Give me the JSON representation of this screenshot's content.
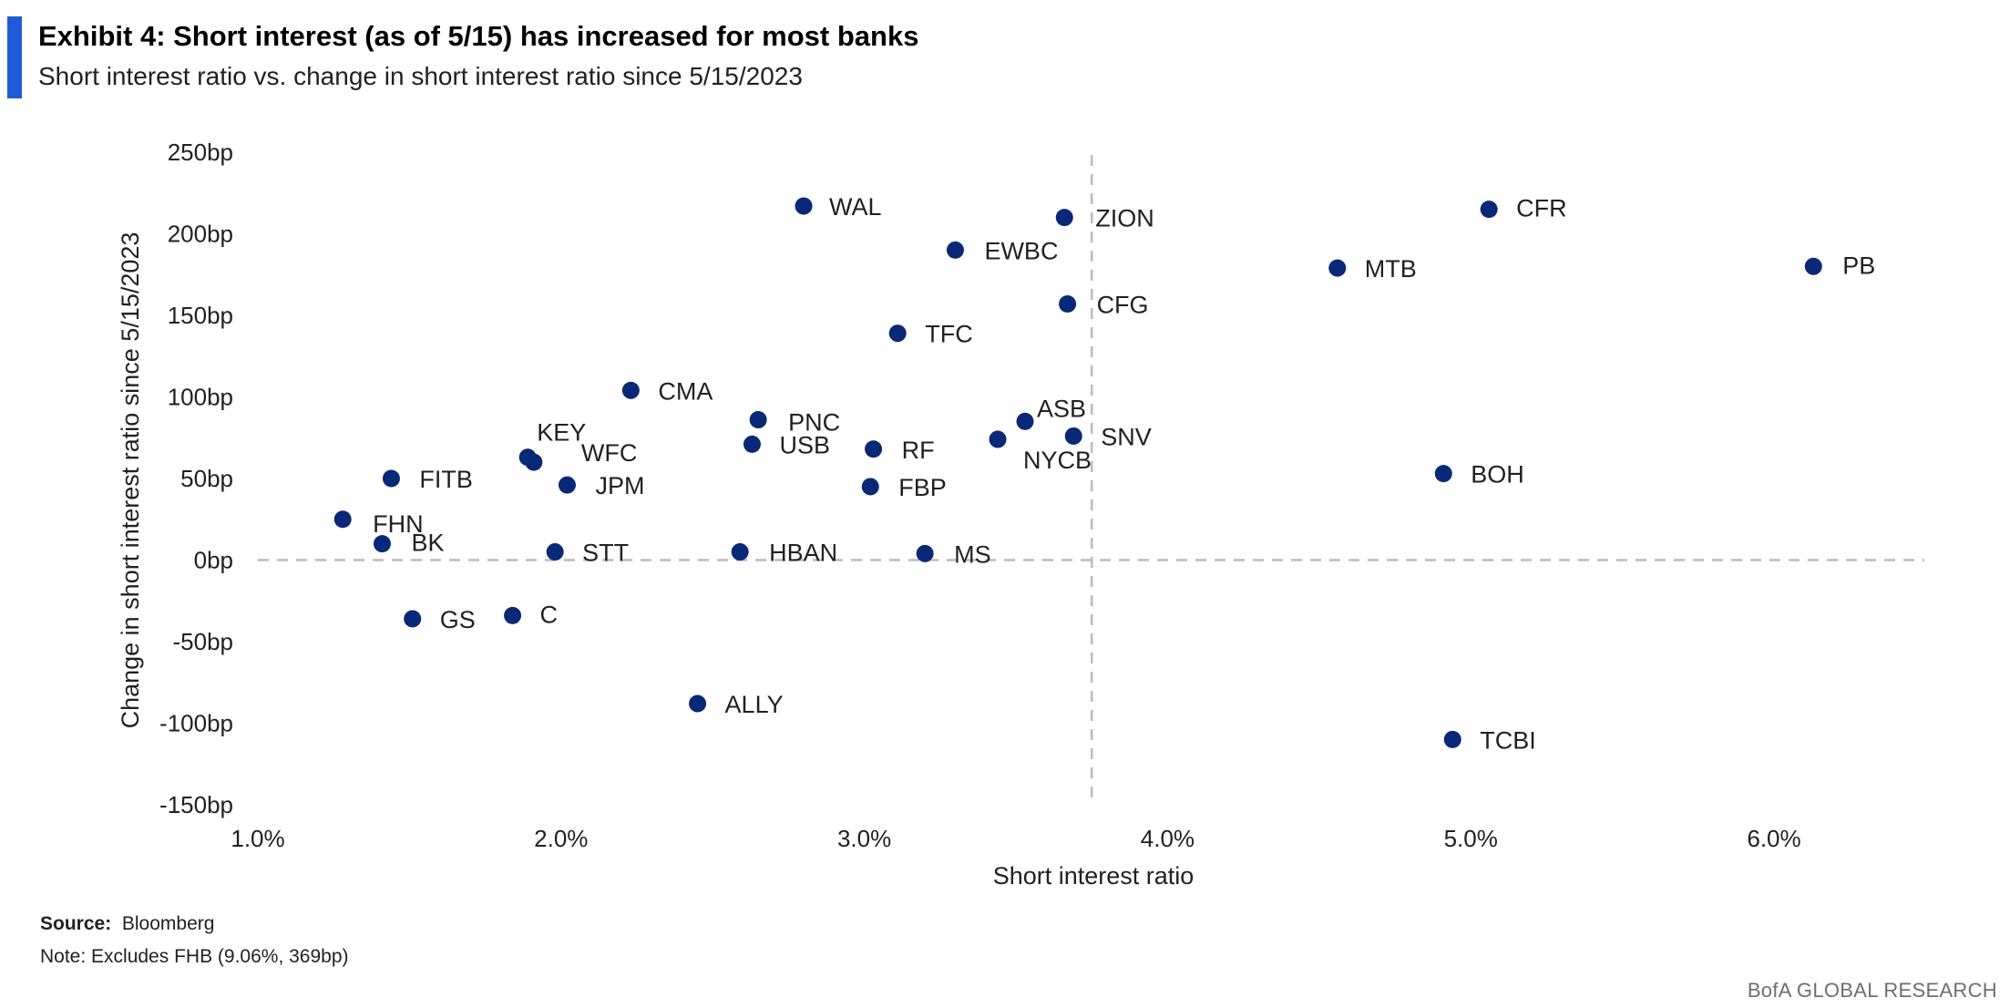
{
  "header": {
    "title": "Exhibit 4: Short interest (as of 5/15) has increased for most banks",
    "subtitle": "Short interest ratio vs. change in short interest ratio since 5/15/2023"
  },
  "footer": {
    "source_label": "Source:",
    "source_value": "Bloomberg",
    "note": "Note: Excludes FHB (9.06%, 369bp)",
    "brand": "BofA GLOBAL RESEARCH"
  },
  "chart_data": {
    "type": "scatter",
    "xlabel": "Short interest ratio",
    "ylabel": "Change in short interest ratio since 5/15/2023",
    "xlim": [
      1.0,
      6.0
    ],
    "ylim": [
      -150,
      250
    ],
    "x_ticks": [
      "1.0%",
      "2.0%",
      "3.0%",
      "4.0%",
      "5.0%",
      "6.0%"
    ],
    "y_ticks": [
      "250bp",
      "200bp",
      "150bp",
      "100bp",
      "50bp",
      "0bp",
      "-50bp",
      "-100bp",
      "-150bp"
    ],
    "reference_lines": {
      "vertical_x": 3.75,
      "horizontal_y": 0
    },
    "grid": false,
    "marker_color": "#0a2878",
    "points": [
      {
        "label": "WAL",
        "x": 2.8,
        "y": 217
      },
      {
        "label": "ZION",
        "x": 3.66,
        "y": 210
      },
      {
        "label": "CFR",
        "x": 5.06,
        "y": 215
      },
      {
        "label": "EWBC",
        "x": 3.3,
        "y": 190
      },
      {
        "label": "MTB",
        "x": 4.56,
        "y": 179
      },
      {
        "label": "PB",
        "x": 6.13,
        "y": 180
      },
      {
        "label": "CFG",
        "x": 3.67,
        "y": 157
      },
      {
        "label": "TFC",
        "x": 3.11,
        "y": 139
      },
      {
        "label": "CMA",
        "x": 2.23,
        "y": 104
      },
      {
        "label": "PNC",
        "x": 2.65,
        "y": 86
      },
      {
        "label": "ASB",
        "x": 3.53,
        "y": 85
      },
      {
        "label": "KEY",
        "x": 1.89,
        "y": 63
      },
      {
        "label": "WFC",
        "x": 1.91,
        "y": 60
      },
      {
        "label": "USB",
        "x": 2.63,
        "y": 71
      },
      {
        "label": "RF",
        "x": 3.03,
        "y": 68
      },
      {
        "label": "SNV",
        "x": 3.69,
        "y": 76
      },
      {
        "label": "NYCB",
        "x": 3.44,
        "y": 74
      },
      {
        "label": "FITB",
        "x": 1.44,
        "y": 50
      },
      {
        "label": "JPM",
        "x": 2.02,
        "y": 46
      },
      {
        "label": "FBP",
        "x": 3.02,
        "y": 45
      },
      {
        "label": "BOH",
        "x": 4.91,
        "y": 53
      },
      {
        "label": "FHN",
        "x": 1.28,
        "y": 25
      },
      {
        "label": "BK",
        "x": 1.41,
        "y": 10
      },
      {
        "label": "STT",
        "x": 1.98,
        "y": 5
      },
      {
        "label": "HBAN",
        "x": 2.59,
        "y": 5
      },
      {
        "label": "MS",
        "x": 3.2,
        "y": 4
      },
      {
        "label": "GS",
        "x": 1.51,
        "y": -36
      },
      {
        "label": "C",
        "x": 1.84,
        "y": -34
      },
      {
        "label": "ALLY",
        "x": 2.45,
        "y": -88
      },
      {
        "label": "TCBI",
        "x": 4.94,
        "y": -110
      }
    ]
  }
}
